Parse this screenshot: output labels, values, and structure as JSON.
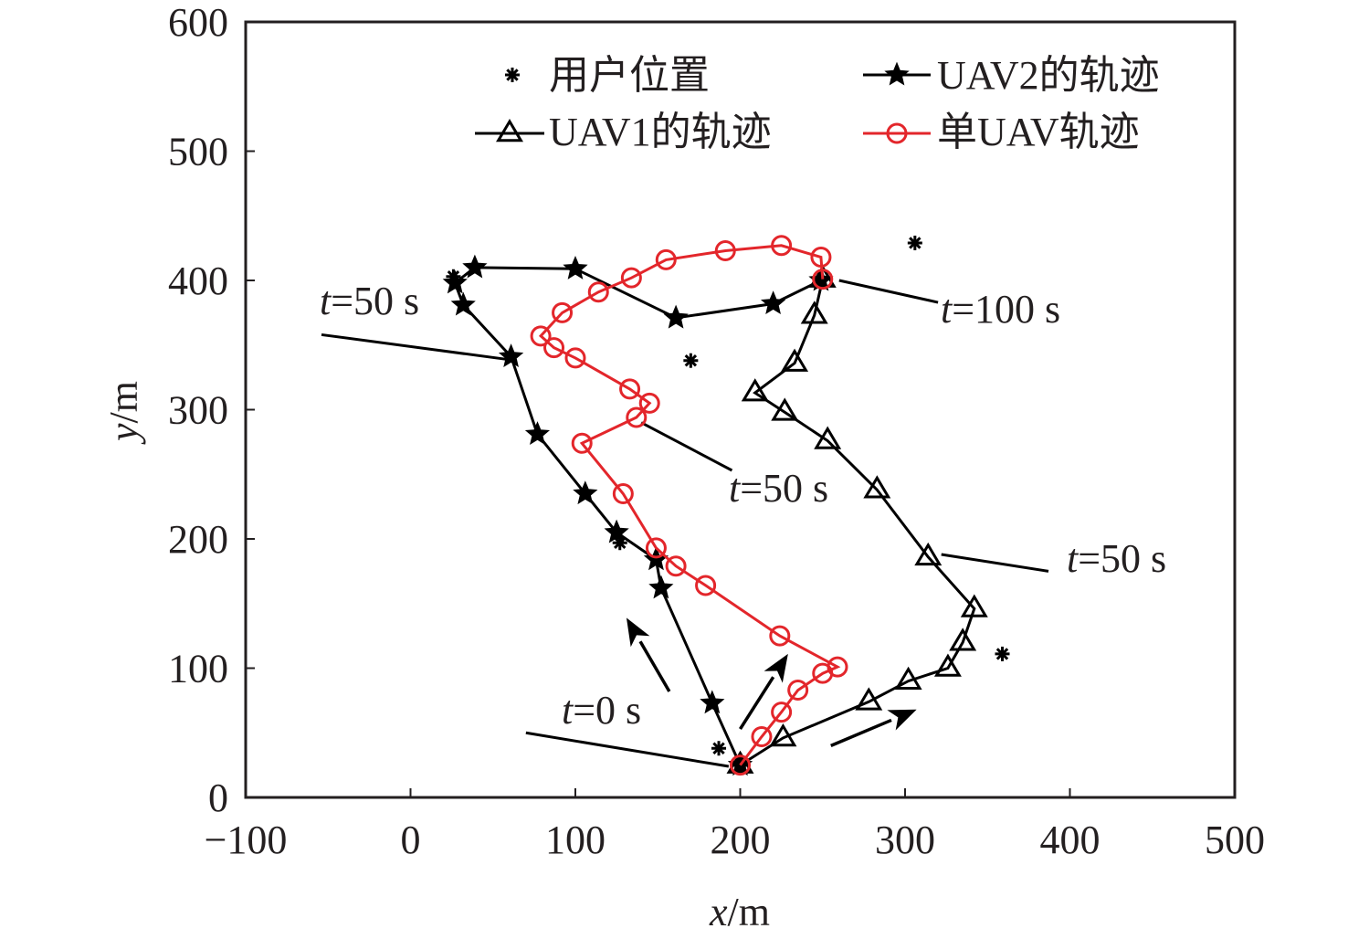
{
  "chart_data": {
    "type": "line",
    "title": "",
    "xlabel": "x/m",
    "ylabel": "y/m",
    "xlabel_var": "x",
    "xlabel_unit": "/m",
    "ylabel_var": "y",
    "ylabel_unit": "/m",
    "xlim": [
      -100,
      500
    ],
    "ylim": [
      0,
      600
    ],
    "xticks": [
      -100,
      0,
      100,
      200,
      300,
      400,
      500
    ],
    "yticks": [
      0,
      100,
      200,
      300,
      400,
      500,
      600
    ],
    "xtick_labels": [
      "−100",
      "0",
      "100",
      "200",
      "300",
      "400",
      "500"
    ],
    "ytick_labels": [
      "0",
      "100",
      "200",
      "300",
      "400",
      "500",
      "600"
    ],
    "grid": false,
    "legend_position": "top-right",
    "colors": {
      "black": "#000000",
      "red": "#e3262b",
      "text": "#231f20"
    },
    "series": [
      {
        "name": "用户位置",
        "marker": "asterisk",
        "line": false,
        "color": "#000000",
        "points": [
          [
            187,
            38
          ],
          [
            170,
            338
          ],
          [
            127,
            197
          ],
          [
            26,
            403
          ],
          [
            306,
            429
          ],
          [
            359,
            111
          ]
        ]
      },
      {
        "name": "UAV2的轨迹",
        "marker": "star",
        "line": true,
        "color": "#000000",
        "points": [
          [
            200,
            25
          ],
          [
            183,
            73
          ],
          [
            152,
            162
          ],
          [
            149,
            184
          ],
          [
            125,
            205
          ],
          [
            106,
            235
          ],
          [
            77,
            281
          ],
          [
            61,
            341
          ],
          [
            32,
            381
          ],
          [
            27,
            398
          ],
          [
            39,
            410
          ],
          [
            100,
            409
          ],
          [
            161,
            371
          ],
          [
            220,
            382
          ],
          [
            249,
            400
          ]
        ]
      },
      {
        "name": "UAV1的轨迹",
        "marker": "triangle",
        "line": true,
        "color": "#000000",
        "points": [
          [
            200,
            25
          ],
          [
            226,
            46
          ],
          [
            278,
            74
          ],
          [
            302,
            90
          ],
          [
            326,
            100
          ],
          [
            335,
            120
          ],
          [
            342,
            146
          ],
          [
            314,
            186
          ],
          [
            283,
            238
          ],
          [
            253,
            276
          ],
          [
            227,
            298
          ],
          [
            209,
            313
          ],
          [
            233,
            336
          ],
          [
            245,
            373
          ],
          [
            250,
            401
          ]
        ]
      },
      {
        "name": "单UAV轨迹",
        "marker": "circle",
        "line": true,
        "color": "#e3262b",
        "points": [
          [
            200,
            25
          ],
          [
            213,
            47
          ],
          [
            225,
            66
          ],
          [
            235,
            83
          ],
          [
            250,
            96
          ],
          [
            259,
            101
          ],
          [
            224,
            125
          ],
          [
            179,
            164
          ],
          [
            161,
            179
          ],
          [
            149,
            193
          ],
          [
            129,
            235
          ],
          [
            104,
            274
          ],
          [
            137,
            294
          ],
          [
            145,
            305
          ],
          [
            133,
            316
          ],
          [
            100,
            340
          ],
          [
            87,
            348
          ],
          [
            79,
            357
          ],
          [
            92,
            375
          ],
          [
            114,
            391
          ],
          [
            134,
            402
          ],
          [
            155,
            416
          ],
          [
            191,
            423
          ],
          [
            225,
            427
          ],
          [
            249,
            418
          ],
          [
            250,
            401
          ]
        ]
      }
    ],
    "annotations": [
      {
        "var": "t",
        "text": "=0 s",
        "from": [
          70,
          50
        ],
        "to": [
          193,
          24
        ]
      },
      {
        "var": "t",
        "text": "=50 s",
        "from": [
          -54,
          358
        ],
        "to": [
          58,
          339
        ]
      },
      {
        "var": "t",
        "text": "=50 s",
        "from": [
          140,
          290
        ],
        "to": [
          195,
          253
        ]
      },
      {
        "var": "t",
        "text": "=50 s",
        "from": [
          322,
          188
        ],
        "to": [
          387,
          175
        ]
      },
      {
        "var": "t",
        "text": "=100 s",
        "from": [
          260,
          400
        ],
        "to": [
          320,
          383
        ]
      }
    ],
    "arrows": [
      {
        "from": [
          157,
          82
        ],
        "to": [
          131,
          139
        ]
      },
      {
        "from": [
          200,
          53
        ],
        "to": [
          229,
          111
        ]
      },
      {
        "from": [
          255,
          40
        ],
        "to": [
          307,
          68
        ]
      }
    ]
  }
}
